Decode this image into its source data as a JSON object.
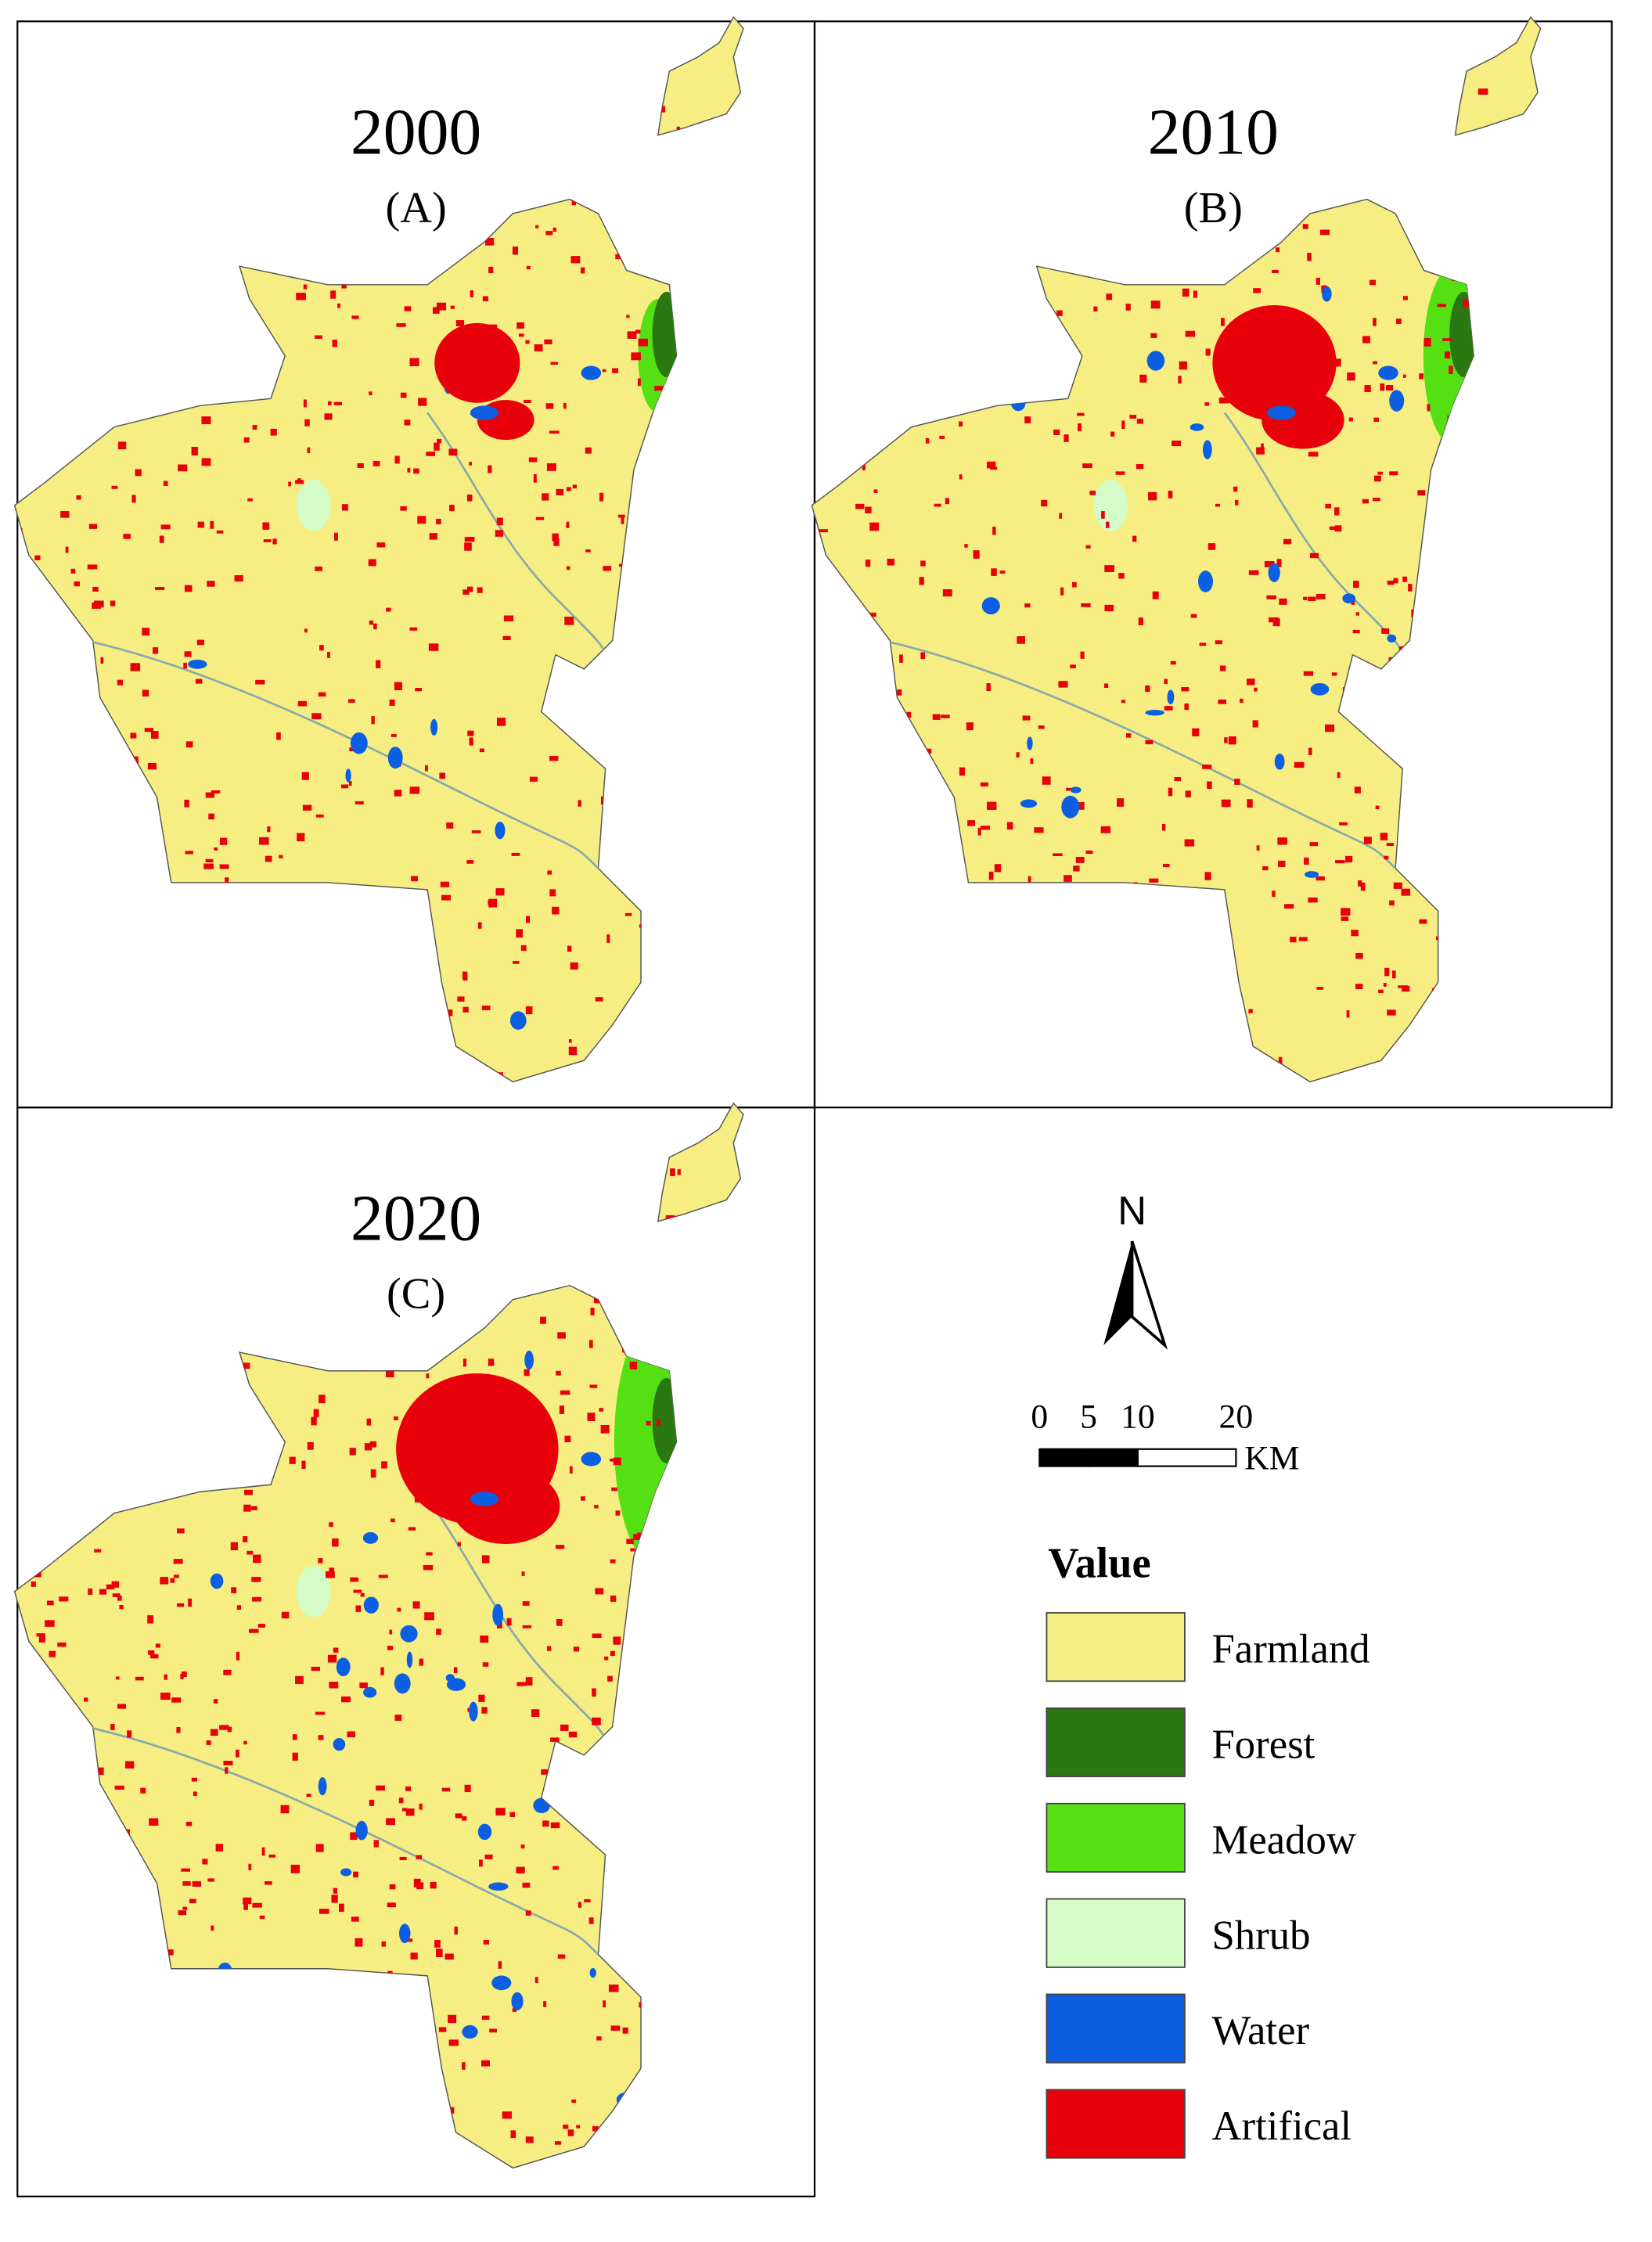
{
  "panels": [
    {
      "year": "2000",
      "label": "(A)"
    },
    {
      "year": "2010",
      "label": "(B)"
    },
    {
      "year": "2020",
      "label": "(C)"
    }
  ],
  "north_arrow": {
    "label": "N"
  },
  "scale_bar": {
    "ticks": [
      0,
      5,
      10,
      20
    ],
    "unit": "KM"
  },
  "legend": {
    "title": "Value",
    "items": [
      {
        "name": "Farmland",
        "color": "#f6ee82"
      },
      {
        "name": "Forest",
        "color": "#2b7812"
      },
      {
        "name": "Meadow",
        "color": "#55e014"
      },
      {
        "name": "Shrub",
        "color": "#d5fbc9"
      },
      {
        "name": "Water",
        "color": "#0b5fe0"
      },
      {
        "name": "Artifical",
        "color": "#e8000b"
      }
    ]
  }
}
